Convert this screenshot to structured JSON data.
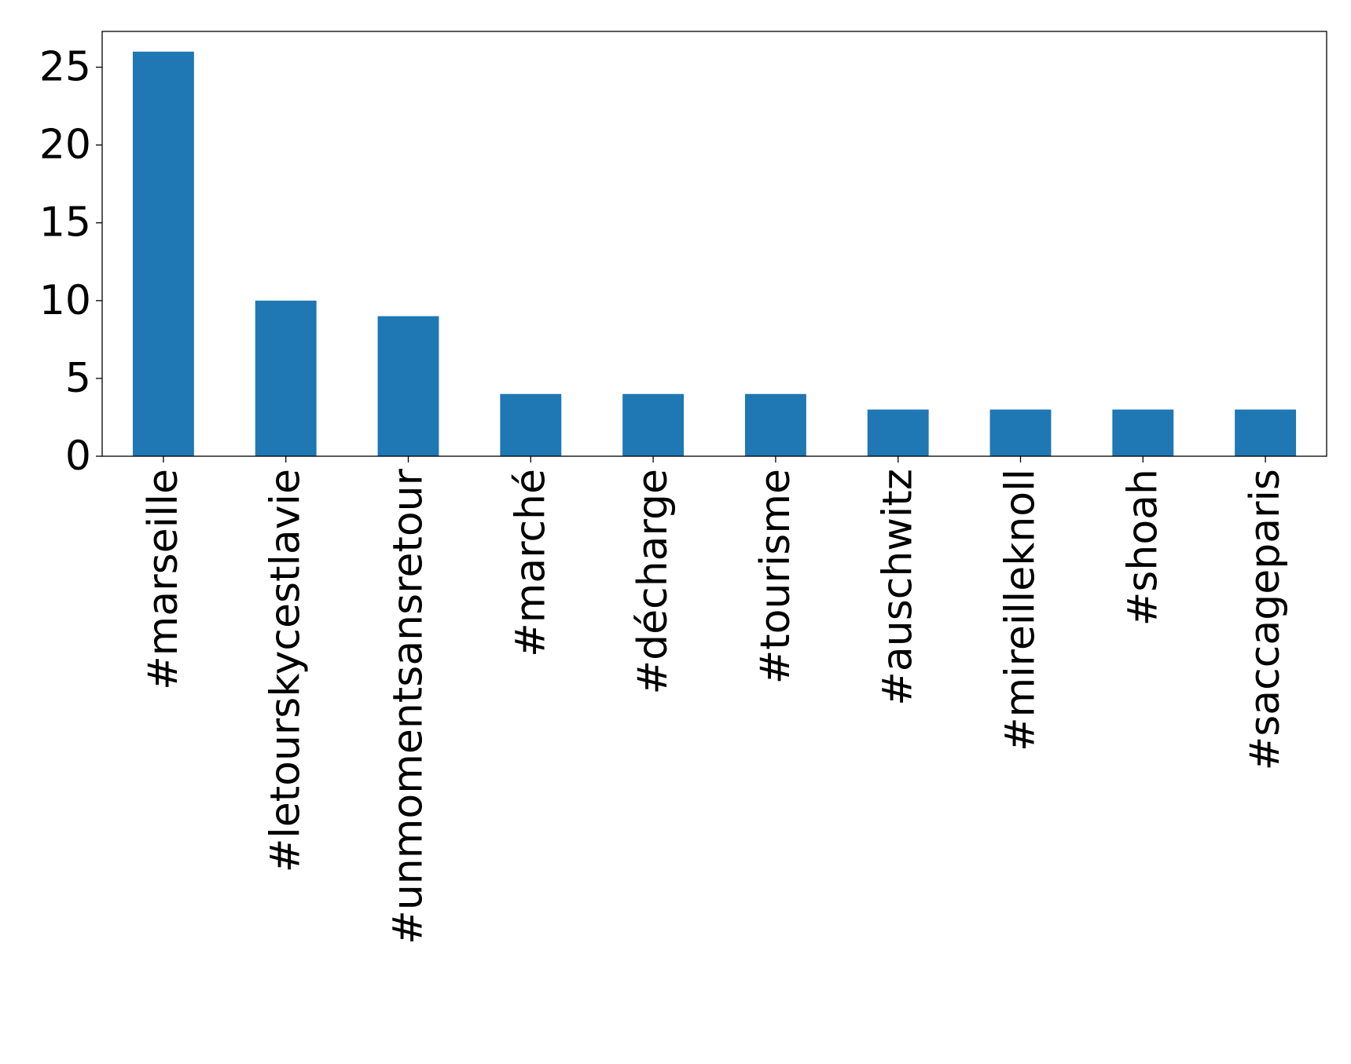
{
  "chart_data": {
    "type": "bar",
    "title": "",
    "xlabel": "",
    "ylabel": "",
    "categories": [
      "#marseille",
      "#letourskycestlavie",
      "#unmomentsansretour",
      "#marché",
      "#décharge",
      "#tourisme",
      "#auschwitz",
      "#mireilleknoll",
      "#shoah",
      "#saccageparis"
    ],
    "values": [
      26,
      10,
      9,
      4,
      4,
      4,
      3,
      3,
      3,
      3
    ],
    "ylim": [
      0,
      27.3
    ],
    "yticks": [
      0,
      5,
      10,
      15,
      20,
      25
    ],
    "bar_color": "#1f77b4",
    "grid": false,
    "legend": "none"
  }
}
